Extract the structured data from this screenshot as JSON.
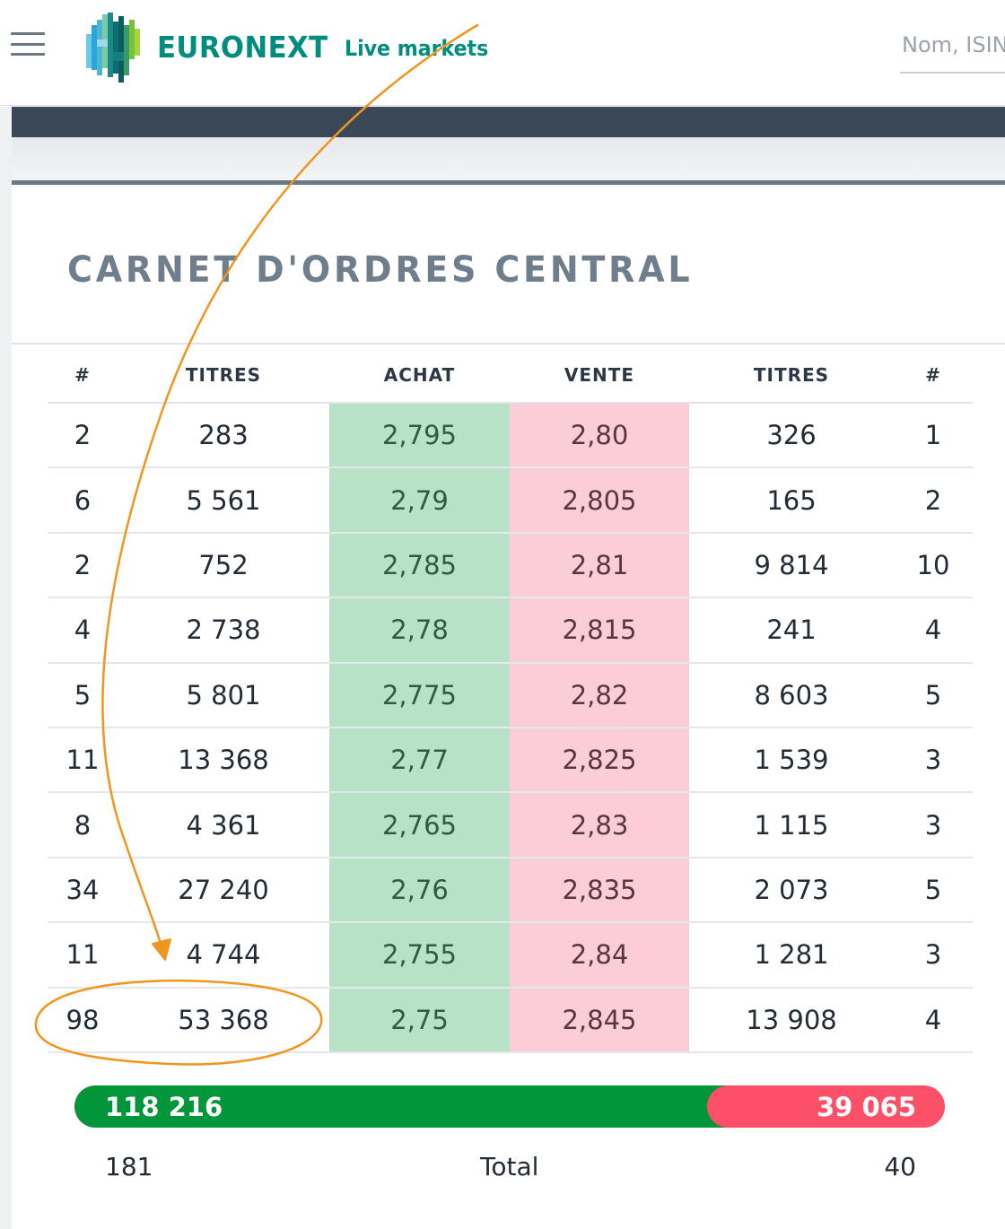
{
  "header": {
    "brand": "EURONEXT",
    "tagline": "Live markets",
    "search_placeholder": "Nom, ISIN"
  },
  "panel": {
    "title": "CARNET D'ORDRES CENTRAL"
  },
  "order_book": {
    "columns": [
      "#",
      "TITRES",
      "ACHAT",
      "VENTE",
      "TITRES",
      "#"
    ],
    "rows": [
      [
        "2",
        "283",
        "2,795",
        "2,80",
        "326",
        "1"
      ],
      [
        "6",
        "5 561",
        "2,79",
        "2,805",
        "165",
        "2"
      ],
      [
        "2",
        "752",
        "2,785",
        "2,81",
        "9 814",
        "10"
      ],
      [
        "4",
        "2 738",
        "2,78",
        "2,815",
        "241",
        "4"
      ],
      [
        "5",
        "5 801",
        "2,775",
        "2,82",
        "8 603",
        "5"
      ],
      [
        "11",
        "13 368",
        "2,77",
        "2,825",
        "1 539",
        "3"
      ],
      [
        "8",
        "4 361",
        "2,765",
        "2,83",
        "1 115",
        "3"
      ],
      [
        "34",
        "27 240",
        "2,76",
        "2,835",
        "2 073",
        "5"
      ],
      [
        "11",
        "4 744",
        "2,755",
        "2,84",
        "1 281",
        "3"
      ],
      [
        "98",
        "53 368",
        "2,75",
        "2,845",
        "13 908",
        "4"
      ]
    ]
  },
  "totals": {
    "buy_volume": "118 216",
    "sell_volume": "39 065",
    "buy_orders": "181",
    "label": "Total",
    "sell_orders": "40",
    "buy_share": 0.7516
  },
  "colors": {
    "brand_teal": "#008d7f",
    "bid_cell": "#b8e2c6",
    "ask_cell": "#fbcdd6",
    "buy_bar": "#009639",
    "sell_bar": "#fb5068",
    "annotation": "#f0951e"
  },
  "icons": {
    "menu": "hamburger-menu-icon",
    "logo": "euronext-logo-icon"
  }
}
